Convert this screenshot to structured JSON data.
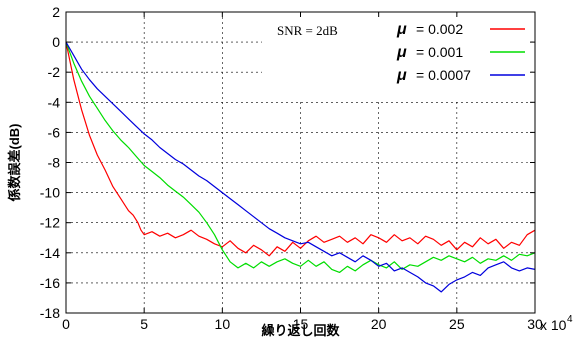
{
  "chart_data": {
    "type": "line",
    "title": "",
    "xlabel": "繰り返し回数",
    "ylabel": "係数誤差(dB)",
    "x_multiplier_label": "x 10",
    "x_multiplier_exp": "4",
    "xlim": [
      0,
      30
    ],
    "ylim": [
      -18,
      2
    ],
    "xticks": [
      0,
      5,
      10,
      15,
      20,
      25,
      30
    ],
    "yticks": [
      2,
      0,
      -2,
      -4,
      -6,
      -8,
      -10,
      -12,
      -14,
      -16,
      -18
    ],
    "grid": true,
    "legend_position": "top-right",
    "annotation": "SNR = 2dB",
    "legend_symbol": "μ",
    "series": [
      {
        "name": "= 0.002",
        "color": "#ff0000",
        "x": [
          0,
          0.5,
          1,
          1.5,
          2,
          2.5,
          3,
          3.5,
          4,
          4.3,
          4.6,
          4.8,
          5,
          5.5,
          6,
          6.5,
          7,
          7.5,
          8,
          8.5,
          9,
          9.5,
          10,
          10.5,
          11,
          11.5,
          12,
          12.5,
          13,
          13.5,
          14,
          14.5,
          15,
          15.5,
          16,
          16.5,
          17,
          17.5,
          18,
          18.5,
          19,
          19.5,
          20,
          20.5,
          21,
          21.5,
          22,
          22.5,
          23,
          23.5,
          24,
          24.5,
          25,
          25.5,
          26,
          26.5,
          27,
          27.5,
          28,
          28.5,
          29,
          29.5,
          30
        ],
        "y": [
          0,
          -2.5,
          -4.5,
          -6.2,
          -7.5,
          -8.5,
          -9.6,
          -10.4,
          -11.2,
          -11.5,
          -12.0,
          -12.5,
          -12.8,
          -12.6,
          -12.9,
          -12.7,
          -13.0,
          -12.8,
          -12.5,
          -12.9,
          -13.1,
          -13.4,
          -13.6,
          -13.2,
          -13.7,
          -14.0,
          -13.5,
          -13.8,
          -14.2,
          -13.6,
          -13.9,
          -13.3,
          -13.7,
          -13.2,
          -12.9,
          -13.3,
          -13.1,
          -12.9,
          -13.3,
          -13.0,
          -13.4,
          -12.8,
          -13.0,
          -13.3,
          -12.8,
          -13.2,
          -13.0,
          -13.4,
          -12.9,
          -13.1,
          -13.5,
          -13.2,
          -13.8,
          -13.3,
          -13.6,
          -13.0,
          -13.4,
          -13.1,
          -13.7,
          -13.3,
          -13.5,
          -12.8,
          -12.5
        ]
      },
      {
        "name": "= 0.001",
        "color": "#00dd00",
        "x": [
          0,
          0.5,
          1,
          1.5,
          2,
          2.5,
          3,
          3.5,
          4,
          4.5,
          5,
          5.5,
          6,
          6.5,
          7,
          7.5,
          8,
          8.5,
          9,
          9.5,
          10,
          10.5,
          11,
          11.5,
          12,
          12.5,
          13,
          13.5,
          14,
          14.5,
          15,
          15.5,
          16,
          16.5,
          17,
          17.5,
          18,
          18.5,
          19,
          19.5,
          20,
          20.5,
          21,
          21.5,
          22,
          22.5,
          23,
          23.5,
          24,
          24.5,
          25,
          25.5,
          26,
          26.5,
          27,
          27.5,
          28,
          28.5,
          29,
          29.5,
          30
        ],
        "y": [
          0,
          -1.4,
          -2.6,
          -3.6,
          -4.4,
          -5.2,
          -5.9,
          -6.5,
          -7.0,
          -7.6,
          -8.2,
          -8.6,
          -9.0,
          -9.5,
          -9.9,
          -10.3,
          -10.8,
          -11.3,
          -12.0,
          -12.8,
          -13.8,
          -14.6,
          -15.0,
          -14.7,
          -15.0,
          -14.6,
          -14.9,
          -14.6,
          -14.4,
          -14.7,
          -14.9,
          -14.5,
          -14.9,
          -14.6,
          -15.1,
          -15.3,
          -14.9,
          -15.2,
          -14.8,
          -14.5,
          -14.8,
          -15.0,
          -14.6,
          -15.1,
          -14.8,
          -14.9,
          -14.6,
          -14.3,
          -14.5,
          -14.2,
          -14.4,
          -14.6,
          -14.3,
          -14.7,
          -14.4,
          -14.5,
          -14.2,
          -14.5,
          -14.1,
          -14.2,
          -14.0
        ]
      },
      {
        "name": "= 0.0007",
        "color": "#0000dd",
        "x": [
          0,
          0.5,
          1,
          1.5,
          2,
          2.5,
          3,
          3.5,
          4,
          4.5,
          5,
          5.5,
          6,
          6.5,
          7,
          7.5,
          8,
          8.5,
          9,
          9.5,
          10,
          10.5,
          11,
          11.5,
          12,
          12.5,
          13,
          13.5,
          14,
          14.5,
          15,
          15.5,
          16,
          16.5,
          17,
          17.5,
          18,
          18.5,
          19,
          19.5,
          20,
          20.5,
          21,
          21.5,
          22,
          22.5,
          23,
          23.5,
          24,
          24.5,
          25,
          25.5,
          26,
          26.5,
          27,
          27.5,
          28,
          28.5,
          29,
          29.5,
          30
        ],
        "y": [
          0,
          -0.9,
          -1.8,
          -2.5,
          -3.1,
          -3.6,
          -4.1,
          -4.6,
          -5.1,
          -5.6,
          -6.1,
          -6.5,
          -7.0,
          -7.4,
          -7.8,
          -8.1,
          -8.5,
          -8.9,
          -9.2,
          -9.6,
          -10.0,
          -10.4,
          -10.8,
          -11.2,
          -11.6,
          -12.0,
          -12.4,
          -12.7,
          -13.0,
          -13.2,
          -13.4,
          -13.3,
          -13.6,
          -13.9,
          -14.2,
          -14.0,
          -14.3,
          -14.6,
          -14.2,
          -14.5,
          -14.9,
          -14.7,
          -15.2,
          -15.0,
          -15.3,
          -15.6,
          -16.0,
          -16.2,
          -16.6,
          -16.1,
          -15.8,
          -15.6,
          -15.3,
          -15.5,
          -15.0,
          -14.8,
          -14.6,
          -15.0,
          -15.2,
          -15.0,
          -15.1
        ]
      }
    ]
  }
}
